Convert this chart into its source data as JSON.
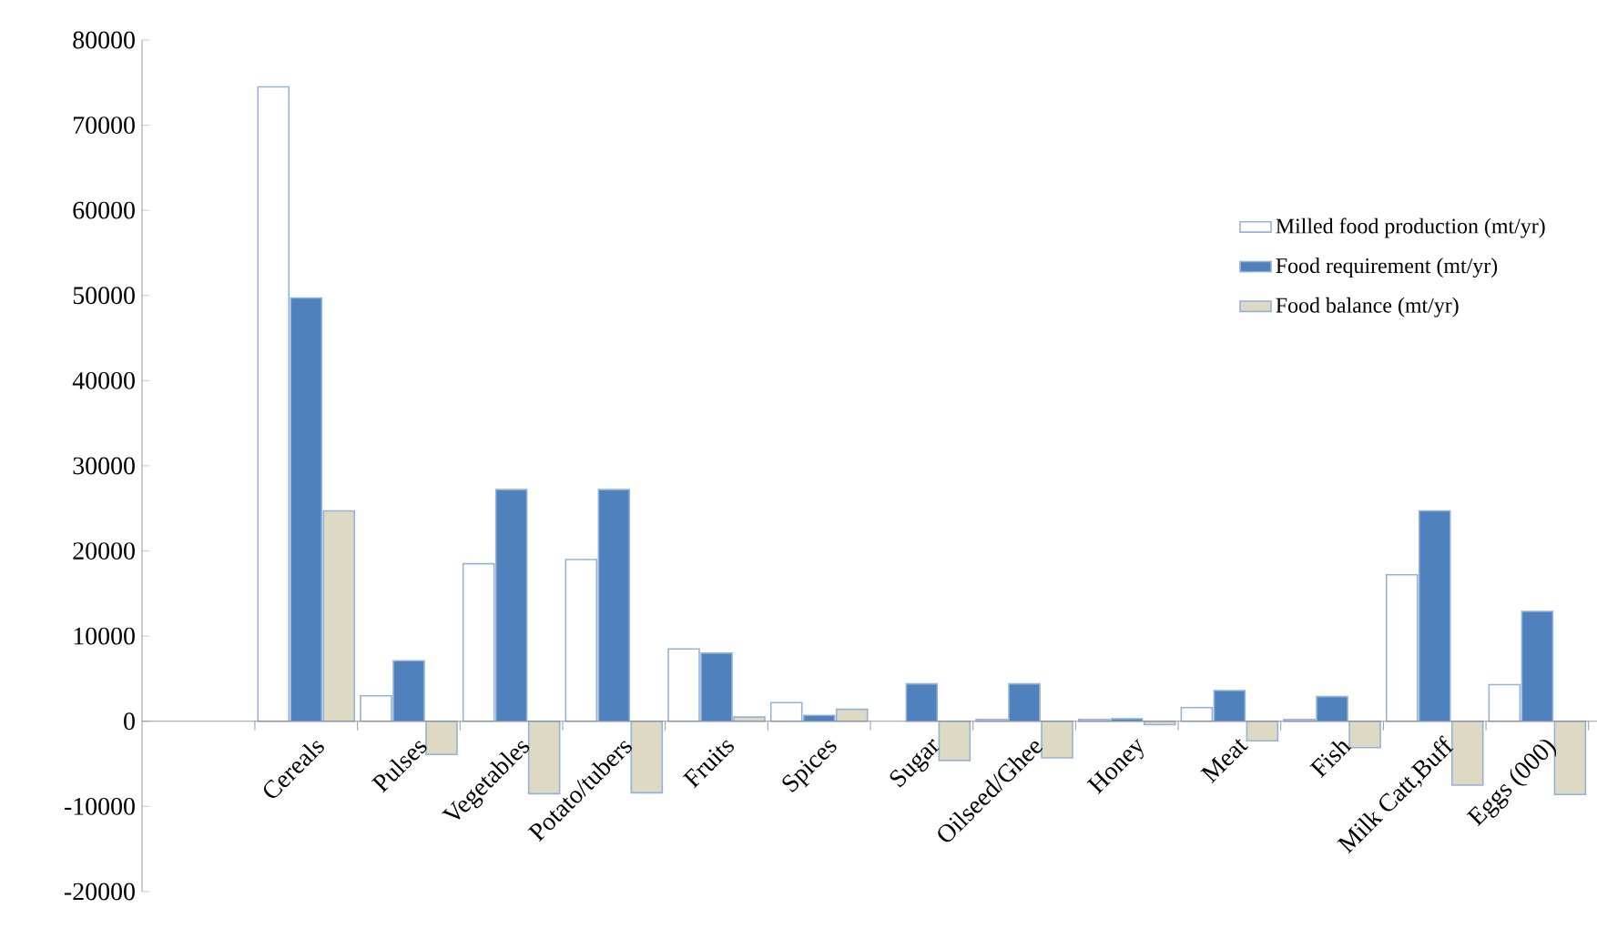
{
  "chart_data": {
    "type": "bar",
    "categories": [
      "Cereals",
      "Pulses",
      "Vegetables",
      "Potato/tubers",
      "Fruits",
      "Spices",
      "Sugar",
      "Oilseed/Ghee",
      "Honey",
      "Meat",
      "Fish",
      "Milk Catt,Buff",
      "Eggs (000)"
    ],
    "series": [
      {
        "name": "Milled food production (mt/yr)",
        "color": "#ffffff",
        "values": [
          74500,
          3000,
          18500,
          19000,
          8500,
          2200,
          null,
          200,
          200,
          1600,
          200,
          17200,
          4300
        ]
      },
      {
        "name": "Food requirement (mt/yr)",
        "color": "#4f81bd",
        "values": [
          49700,
          7100,
          27200,
          27200,
          8000,
          700,
          4400,
          4400,
          300,
          3600,
          2900,
          24700,
          12900
        ]
      },
      {
        "name": "Food balance (mt/yr)",
        "color": "#ddd9c3",
        "values": [
          24700,
          -3900,
          -8500,
          -8400,
          500,
          1400,
          -4600,
          -4300,
          -400,
          -2300,
          -3100,
          -7500,
          -8600
        ]
      }
    ],
    "ylim": [
      -20000,
      80000
    ],
    "yticks": [
      -20000,
      -10000,
      0,
      10000,
      20000,
      30000,
      40000,
      50000,
      60000,
      70000,
      80000
    ],
    "legend": "top right"
  }
}
